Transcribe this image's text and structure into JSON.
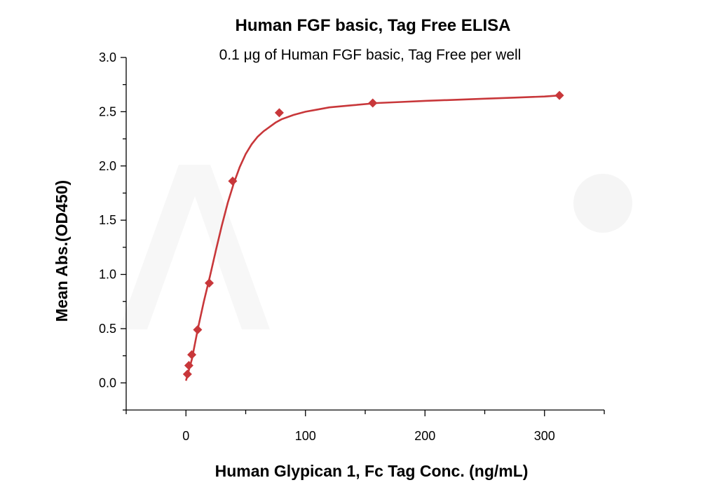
{
  "chart_data": {
    "type": "scatter",
    "title": "Human FGF basic, Tag Free ELISA",
    "subtitle": "0.1 μg of Human FGF basic, Tag Free per well",
    "xlabel": "Human Glypican 1, Fc Tag Conc. (ng/mL)",
    "ylabel": "Mean Abs.(OD450)",
    "xlim": [
      -50,
      350
    ],
    "ylim": [
      -0.25,
      3.0
    ],
    "x_ticks": [
      0,
      100,
      200,
      300
    ],
    "x_tick_labels": [
      "0",
      "100",
      "200",
      "300"
    ],
    "y_ticks": [
      0.0,
      0.5,
      1.0,
      1.5,
      2.0,
      2.5,
      3.0
    ],
    "y_tick_labels": [
      "0.0",
      "0.5",
      "1.0",
      "1.5",
      "2.0",
      "2.5",
      "3.0"
    ],
    "grid": false,
    "series": [
      {
        "marker": "diamond",
        "color": "#c8373a",
        "points": [
          {
            "x": 1.22,
            "y": 0.08
          },
          {
            "x": 2.44,
            "y": 0.16
          },
          {
            "x": 4.88,
            "y": 0.26
          },
          {
            "x": 9.77,
            "y": 0.49
          },
          {
            "x": 19.5,
            "y": 0.92
          },
          {
            "x": 39.1,
            "y": 1.86
          },
          {
            "x": 78.1,
            "y": 2.49
          },
          {
            "x": 156.3,
            "y": 2.58
          },
          {
            "x": 312.5,
            "y": 2.65
          }
        ]
      }
    ],
    "fit_curve": {
      "color": "#c8373a",
      "points": [
        [
          0,
          0.02
        ],
        [
          5,
          0.22
        ],
        [
          10,
          0.5
        ],
        [
          15,
          0.75
        ],
        [
          20,
          0.98
        ],
        [
          25,
          1.22
        ],
        [
          30,
          1.45
        ],
        [
          35,
          1.66
        ],
        [
          40,
          1.84
        ],
        [
          45,
          1.99
        ],
        [
          50,
          2.11
        ],
        [
          55,
          2.2
        ],
        [
          60,
          2.27
        ],
        [
          65,
          2.32
        ],
        [
          70,
          2.36
        ],
        [
          75,
          2.4
        ],
        [
          80,
          2.43
        ],
        [
          90,
          2.47
        ],
        [
          100,
          2.5
        ],
        [
          110,
          2.52
        ],
        [
          120,
          2.54
        ],
        [
          140,
          2.56
        ],
        [
          160,
          2.58
        ],
        [
          180,
          2.59
        ],
        [
          200,
          2.6
        ],
        [
          225,
          2.61
        ],
        [
          250,
          2.62
        ],
        [
          275,
          2.63
        ],
        [
          300,
          2.64
        ],
        [
          312.5,
          2.65
        ]
      ]
    }
  }
}
